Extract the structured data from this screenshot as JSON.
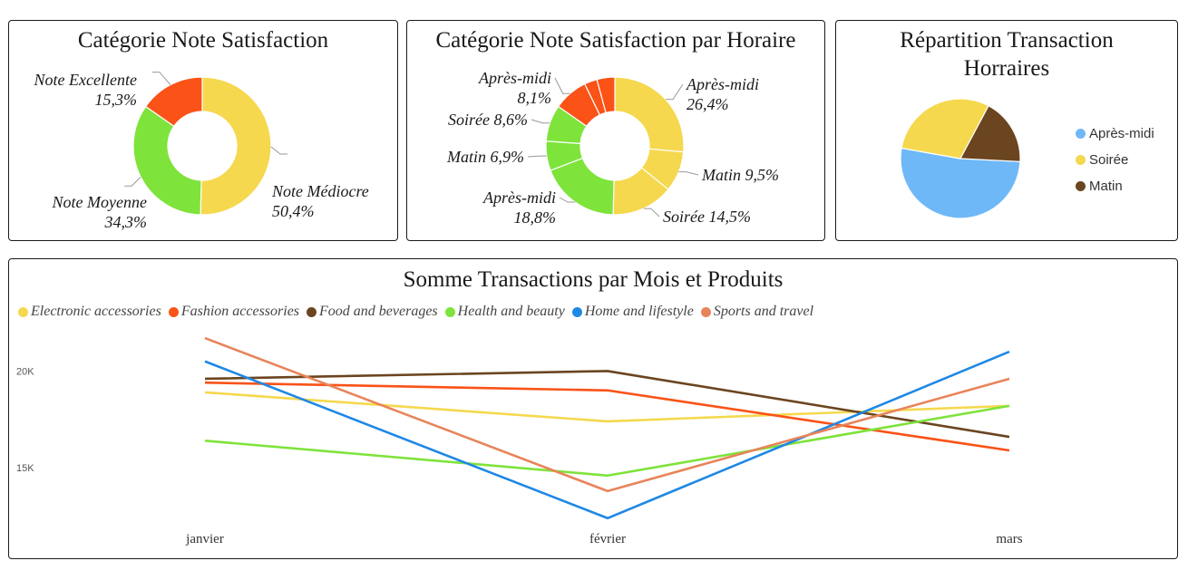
{
  "chart_data": [
    {
      "type": "pie",
      "title": "Catégorie Note Satisfaction",
      "slices": [
        {
          "label": "Note Médiocre",
          "value": 50.4,
          "text": "50,4%",
          "color": "#f5d84e"
        },
        {
          "label": "Note Moyenne",
          "value": 34.3,
          "text": "34,3%",
          "color": "#7ee33b"
        },
        {
          "label": "Note Excellente",
          "value": 15.3,
          "text": "15,3%",
          "color": "#fa5217"
        }
      ]
    },
    {
      "type": "pie",
      "title": "Catégorie Note Satisfaction par Horaire",
      "slices": [
        {
          "label": "Après-midi",
          "value": 26.4,
          "text": "26,4%",
          "color": "#f5d84e"
        },
        {
          "label": "Matin",
          "value": 9.5,
          "text": "9,5%",
          "color": "#f5d84e"
        },
        {
          "label": "Soirée",
          "value": 14.5,
          "text": "14,5%",
          "color": "#f5d84e"
        },
        {
          "label": "Après-midi",
          "value": 18.8,
          "text": "18,8%",
          "color": "#7ee33b"
        },
        {
          "label": "Matin",
          "value": 6.9,
          "text": "6,9%",
          "color": "#7ee33b"
        },
        {
          "label": "Soirée",
          "value": 8.6,
          "text": "8,6%",
          "color": "#7ee33b"
        },
        {
          "label": "Après-midi",
          "value": 8.1,
          "text": "8,1%",
          "color": "#fa5217"
        },
        {
          "label": "Matin",
          "value": 3.0,
          "text": "",
          "color": "#fa5217"
        },
        {
          "label": "Soirée",
          "value": 4.2,
          "text": "",
          "color": "#fa5217"
        }
      ]
    },
    {
      "type": "pie",
      "title": "Répartition Transaction Horraires",
      "slices": [
        {
          "label": "Après-midi",
          "value": 52,
          "color": "#6fb8f7"
        },
        {
          "label": "Soirée",
          "value": 30,
          "color": "#f5d84e"
        },
        {
          "label": "Matin",
          "value": 18,
          "color": "#6b4520"
        }
      ],
      "legend": [
        "Après-midi",
        "Soirée",
        "Matin"
      ],
      "legend_position": "right"
    },
    {
      "type": "line",
      "title": "Somme Transactions par Mois et Produits",
      "categories": [
        "janvier",
        "février",
        "mars"
      ],
      "y_ticks": [
        {
          "value": 20000,
          "label": "20K"
        },
        {
          "value": 15000,
          "label": "15K"
        }
      ],
      "ylim": [
        11500,
        22500
      ],
      "legend_position": "top-left",
      "series": [
        {
          "name": "Electronic accessories",
          "color": "#f5d84e",
          "values": [
            18900,
            17400,
            18200
          ]
        },
        {
          "name": "Fashion accessories",
          "color": "#fa5217",
          "values": [
            19400,
            19000,
            15900
          ]
        },
        {
          "name": "Food and beverages",
          "color": "#6b4520",
          "values": [
            19600,
            20000,
            16600
          ]
        },
        {
          "name": "Health and beauty",
          "color": "#7ee33b",
          "values": [
            16400,
            14600,
            18200
          ]
        },
        {
          "name": "Home and lifestyle",
          "color": "#1e88e5",
          "values": [
            20500,
            12400,
            21000
          ]
        },
        {
          "name": "Sports and travel",
          "color": "#e8845a",
          "values": [
            21700,
            13800,
            19600
          ]
        }
      ]
    }
  ]
}
